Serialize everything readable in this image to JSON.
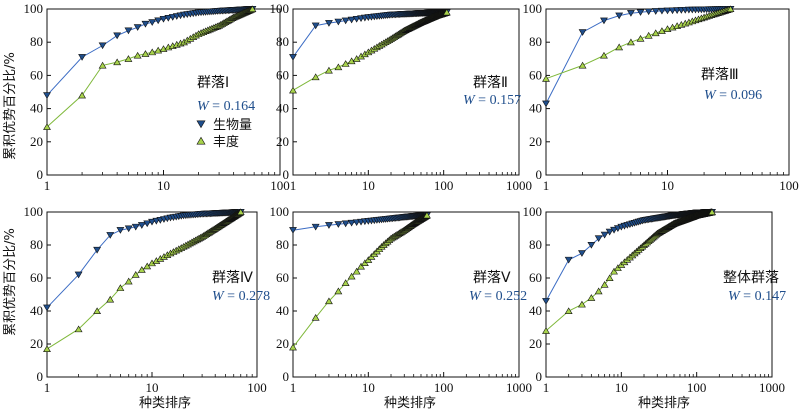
{
  "figure": {
    "ylabel": "累积优势百分比/%",
    "xlabel": "种类排序",
    "legend": {
      "biomass": "生物量",
      "abundance": "丰度"
    },
    "colors": {
      "biomass_marker": "#1f4e8c",
      "biomass_line": "#3b6cc4",
      "abundance_marker": "#a8d34c",
      "abundance_line": "#7fb83a",
      "text_blue": "#1f4e8c"
    }
  },
  "chart_data": [
    {
      "type": "scatter",
      "x_scale": "log",
      "xlim": [
        1,
        100
      ],
      "ylim": [
        0,
        100
      ],
      "x_ticks": [
        "1",
        "10",
        "100"
      ],
      "y_ticks": [
        "0",
        "20",
        "40",
        "60",
        "80",
        "100"
      ],
      "label": "群落Ⅰ",
      "w_prefix": "W",
      "w_value": "= 0.164",
      "n_species": 58,
      "series": [
        {
          "name": "生物量",
          "key": "biomass",
          "anchors": [
            [
              1,
              48
            ],
            [
              2,
              71
            ],
            [
              3,
              78
            ],
            [
              4,
              84
            ],
            [
              5,
              87
            ],
            [
              6,
              89
            ],
            [
              7,
              91
            ],
            [
              8,
              92
            ],
            [
              10,
              94
            ],
            [
              15,
              96.5
            ],
            [
              20,
              97.8
            ],
            [
              30,
              98.8
            ],
            [
              58,
              100
            ]
          ]
        },
        {
          "name": "丰度",
          "key": "abundance",
          "anchors": [
            [
              1,
              29
            ],
            [
              2,
              48
            ],
            [
              3,
              66
            ],
            [
              4,
              68
            ],
            [
              5,
              70
            ],
            [
              6,
              72
            ],
            [
              7,
              73
            ],
            [
              8,
              74
            ],
            [
              10,
              76
            ],
            [
              15,
              80
            ],
            [
              20,
              85
            ],
            [
              30,
              90
            ],
            [
              40,
              95
            ],
            [
              58,
              100
            ]
          ]
        }
      ]
    },
    {
      "type": "scatter",
      "x_scale": "log",
      "xlim": [
        1,
        1000
      ],
      "ylim": [
        0,
        100
      ],
      "x_ticks": [
        "1",
        "10",
        "100",
        "1000"
      ],
      "y_ticks": [
        "0",
        "20",
        "40",
        "60",
        "80",
        "100"
      ],
      "label": "群落Ⅱ",
      "w_prefix": "W",
      "w_value": "= 0.157",
      "n_species": 110,
      "series": [
        {
          "name": "生物量",
          "key": "biomass",
          "anchors": [
            [
              1,
              71
            ],
            [
              2,
              90
            ],
            [
              3,
              91.5
            ],
            [
              5,
              93
            ],
            [
              10,
              95
            ],
            [
              20,
              96.5
            ],
            [
              50,
              97.5
            ],
            [
              110,
              98
            ]
          ]
        },
        {
          "name": "丰度",
          "key": "abundance",
          "anchors": [
            [
              1,
              51
            ],
            [
              2,
              59
            ],
            [
              3,
              63
            ],
            [
              4,
              65
            ],
            [
              5,
              67
            ],
            [
              7,
              70
            ],
            [
              10,
              74
            ],
            [
              20,
              82
            ],
            [
              30,
              87
            ],
            [
              50,
              92
            ],
            [
              80,
              96
            ],
            [
              110,
              98
            ]
          ]
        }
      ]
    },
    {
      "type": "scatter",
      "x_scale": "log",
      "xlim": [
        1,
        100
      ],
      "ylim": [
        0,
        100
      ],
      "x_ticks": [
        "1",
        "10",
        "100"
      ],
      "y_ticks": [
        "0",
        "20",
        "40",
        "60",
        "80",
        "100"
      ],
      "label": "群落Ⅲ",
      "w_prefix": "W",
      "w_value": "= 0.096",
      "n_species": 33,
      "series": [
        {
          "name": "生物量",
          "key": "biomass",
          "anchors": [
            [
              1,
              43
            ],
            [
              2,
              86
            ],
            [
              3,
              93
            ],
            [
              4,
              96
            ],
            [
              5,
              97.5
            ],
            [
              7,
              98.5
            ],
            [
              10,
              99
            ],
            [
              15,
              99.5
            ],
            [
              33,
              100
            ]
          ]
        },
        {
          "name": "丰度",
          "key": "abundance",
          "anchors": [
            [
              1,
              58
            ],
            [
              2,
              66
            ],
            [
              3,
              72
            ],
            [
              4,
              77
            ],
            [
              5,
              80
            ],
            [
              7,
              84
            ],
            [
              10,
              88
            ],
            [
              15,
              92
            ],
            [
              20,
              95
            ],
            [
              33,
              100
            ]
          ]
        }
      ]
    },
    {
      "type": "scatter",
      "x_scale": "log",
      "xlim": [
        1,
        100
      ],
      "ylim": [
        0,
        100
      ],
      "x_ticks": [
        "1",
        "10",
        "100"
      ],
      "y_ticks": [
        "0",
        "20",
        "40",
        "60",
        "80",
        "100"
      ],
      "label": "群落Ⅳ",
      "w_prefix": "W",
      "w_value": "= 0.278",
      "n_species": 70,
      "series": [
        {
          "name": "生物量",
          "key": "biomass",
          "anchors": [
            [
              1,
              42
            ],
            [
              2,
              62
            ],
            [
              3,
              77
            ],
            [
              4,
              86
            ],
            [
              5,
              89
            ],
            [
              6,
              90
            ],
            [
              7,
              91
            ],
            [
              8,
              92
            ],
            [
              10,
              94
            ],
            [
              15,
              96.5
            ],
            [
              20,
              97.8
            ],
            [
              30,
              98.8
            ],
            [
              70,
              100
            ]
          ]
        },
        {
          "name": "丰度",
          "key": "abundance",
          "anchors": [
            [
              1,
              17
            ],
            [
              2,
              29
            ],
            [
              3,
              40
            ],
            [
              4,
              47
            ],
            [
              5,
              54
            ],
            [
              6,
              58
            ],
            [
              7,
              62
            ],
            [
              8,
              65
            ],
            [
              10,
              69
            ],
            [
              15,
              75
            ],
            [
              20,
              79
            ],
            [
              30,
              85
            ],
            [
              40,
              90
            ],
            [
              70,
              100
            ]
          ]
        }
      ]
    },
    {
      "type": "scatter",
      "x_scale": "log",
      "xlim": [
        1,
        1000
      ],
      "ylim": [
        0,
        100
      ],
      "x_ticks": [
        "1",
        "10",
        "100",
        "1000"
      ],
      "y_ticks": [
        "0",
        "20",
        "40",
        "60",
        "80",
        "100"
      ],
      "label": "群落Ⅴ",
      "w_prefix": "W",
      "w_value": "= 0.252",
      "n_species": 60,
      "series": [
        {
          "name": "生物量",
          "key": "biomass",
          "anchors": [
            [
              1,
              89
            ],
            [
              2,
              91
            ],
            [
              3,
              92
            ],
            [
              5,
              93
            ],
            [
              10,
              94.5
            ],
            [
              20,
              96
            ],
            [
              40,
              97.5
            ],
            [
              60,
              98
            ]
          ]
        },
        {
          "name": "丰度",
          "key": "abundance",
          "anchors": [
            [
              1,
              18
            ],
            [
              2,
              36
            ],
            [
              3,
              46
            ],
            [
              4,
              52
            ],
            [
              5,
              57
            ],
            [
              6,
              61
            ],
            [
              7,
              64
            ],
            [
              8,
              67
            ],
            [
              10,
              71
            ],
            [
              15,
              79
            ],
            [
              20,
              84
            ],
            [
              30,
              89
            ],
            [
              40,
              93
            ],
            [
              60,
              98
            ]
          ]
        }
      ]
    },
    {
      "type": "scatter",
      "x_scale": "log",
      "xlim": [
        1,
        1000
      ],
      "ylim": [
        0,
        100
      ],
      "x_ticks": [
        "1",
        "10",
        "100",
        "1000"
      ],
      "y_ticks": [
        "0",
        "20",
        "40",
        "60",
        "80",
        "100"
      ],
      "label": "整体群落",
      "w_prefix": "W",
      "w_value": "= 0.147",
      "n_species": 160,
      "series": [
        {
          "name": "生物量",
          "key": "biomass",
          "anchors": [
            [
              1,
              46
            ],
            [
              2,
              71
            ],
            [
              3,
              75
            ],
            [
              4,
              80
            ],
            [
              5,
              84
            ],
            [
              7,
              88
            ],
            [
              10,
              91
            ],
            [
              20,
              95
            ],
            [
              50,
              98
            ],
            [
              100,
              99.5
            ],
            [
              160,
              100
            ]
          ]
        },
        {
          "name": "丰度",
          "key": "abundance",
          "anchors": [
            [
              1,
              28
            ],
            [
              2,
              40
            ],
            [
              3,
              44
            ],
            [
              4,
              48
            ],
            [
              5,
              52
            ],
            [
              6,
              56
            ],
            [
              7,
              60
            ],
            [
              8,
              64
            ],
            [
              10,
              68
            ],
            [
              20,
              80
            ],
            [
              30,
              87
            ],
            [
              50,
              93
            ],
            [
              100,
              98
            ],
            [
              160,
              100
            ]
          ]
        }
      ]
    }
  ]
}
